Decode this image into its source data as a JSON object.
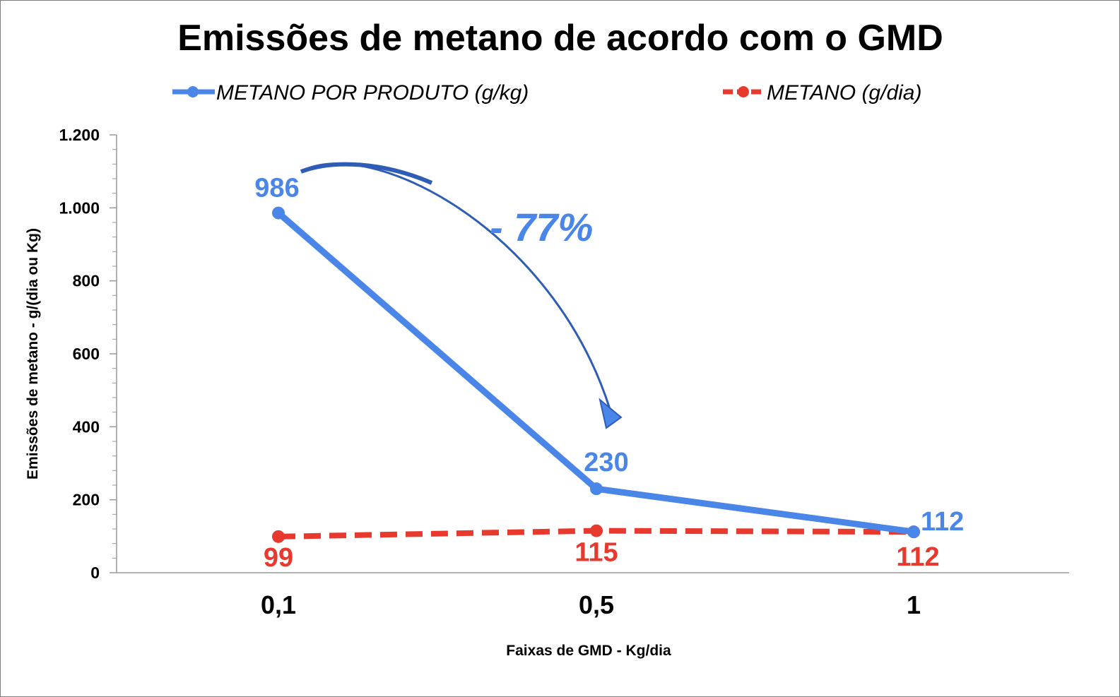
{
  "chart_data": {
    "type": "line",
    "title": "Emissões de metano de acordo com o GMD",
    "xlabel": "Faixas de GMD - Kg/dia",
    "ylabel": "Emissões de metano - g/(dia ou Kg)",
    "categories": [
      "0,1",
      "0,5",
      "1"
    ],
    "ylim": [
      0,
      1200
    ],
    "yticks": [
      0,
      200,
      400,
      600,
      800,
      1000,
      1200
    ],
    "ytick_labels": [
      "0",
      "200",
      "400",
      "600",
      "800",
      "1.000",
      "1.200"
    ],
    "grid": false,
    "legend_position": "top",
    "series": [
      {
        "name": "METANO POR PRODUTO (g/kg)",
        "values": [
          986,
          230,
          112
        ],
        "labels": [
          "986",
          "230",
          "112"
        ],
        "color": "#4A86E8",
        "style": "solid"
      },
      {
        "name": "METANO (g/dia)",
        "values": [
          99,
          115,
          112
        ],
        "labels": [
          "99",
          "115",
          "112"
        ],
        "color": "#E8392F",
        "style": "dashed"
      }
    ],
    "annotations": [
      {
        "text": "- 77%",
        "color": "#4A86E8",
        "arrow_color": "#2F5DB5"
      }
    ]
  }
}
